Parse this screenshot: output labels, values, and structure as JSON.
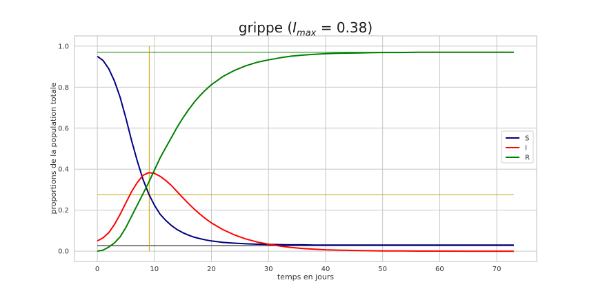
{
  "chart_data": {
    "type": "line",
    "title": {
      "prefix": "grippe (",
      "var": "I",
      "sub": "max",
      "rest": " = 0.38)"
    },
    "xlabel": "temps en jours",
    "ylabel": "proportions de la population totale",
    "xlim": [
      -4,
      77
    ],
    "ylim": [
      -0.05,
      1.05
    ],
    "xticks": [
      0,
      10,
      20,
      30,
      40,
      50,
      60,
      70
    ],
    "yticks": [
      0.0,
      0.2,
      0.4,
      0.6,
      0.8,
      1.0
    ],
    "ytick_labels": [
      "0.0",
      "0.2",
      "0.4",
      "0.6",
      "0.8",
      "1.0"
    ],
    "grid": true,
    "legend_placement": "center-right",
    "x": [
      0,
      1,
      2,
      3,
      4,
      5,
      6,
      7,
      8,
      9,
      10,
      11,
      12,
      13,
      14,
      15,
      16,
      17,
      18,
      19,
      20,
      22,
      24,
      26,
      28,
      30,
      32,
      34,
      36,
      38,
      40,
      42,
      44,
      46,
      48,
      50,
      53,
      56,
      60,
      64,
      68,
      73
    ],
    "series": [
      {
        "name": "S",
        "color": "#000080",
        "values": [
          0.95,
          0.93,
          0.89,
          0.83,
          0.75,
          0.65,
          0.54,
          0.44,
          0.35,
          0.28,
          0.225,
          0.18,
          0.15,
          0.125,
          0.105,
          0.09,
          0.078,
          0.068,
          0.061,
          0.055,
          0.05,
          0.043,
          0.039,
          0.036,
          0.034,
          0.033,
          0.032,
          0.031,
          0.031,
          0.03,
          0.03,
          0.03,
          0.03,
          0.03,
          0.03,
          0.03,
          0.03,
          0.03,
          0.03,
          0.03,
          0.03,
          0.03
        ]
      },
      {
        "name": "I",
        "color": "#ff0000",
        "values": [
          0.05,
          0.065,
          0.09,
          0.13,
          0.18,
          0.235,
          0.29,
          0.335,
          0.37,
          0.383,
          0.38,
          0.365,
          0.345,
          0.32,
          0.29,
          0.26,
          0.232,
          0.205,
          0.18,
          0.158,
          0.138,
          0.105,
          0.08,
          0.06,
          0.045,
          0.034,
          0.025,
          0.018,
          0.013,
          0.01,
          0.007,
          0.005,
          0.004,
          0.003,
          0.002,
          0.0015,
          0.001,
          0.0005,
          0.0003,
          0.0002,
          0.0001,
          0.0
        ]
      },
      {
        "name": "R",
        "color": "#008000",
        "values": [
          0.0,
          0.005,
          0.02,
          0.04,
          0.07,
          0.115,
          0.17,
          0.225,
          0.28,
          0.335,
          0.395,
          0.455,
          0.505,
          0.555,
          0.605,
          0.65,
          0.69,
          0.727,
          0.759,
          0.787,
          0.812,
          0.852,
          0.881,
          0.904,
          0.921,
          0.933,
          0.943,
          0.951,
          0.956,
          0.96,
          0.963,
          0.965,
          0.966,
          0.967,
          0.968,
          0.969,
          0.969,
          0.97,
          0.97,
          0.97,
          0.97,
          0.97
        ]
      }
    ],
    "reference_lines": [
      {
        "orientation": "horizontal",
        "value": 0.97,
        "color": "#008000"
      },
      {
        "orientation": "horizontal",
        "value": 0.275,
        "color": "#c8a000"
      },
      {
        "orientation": "horizontal",
        "value": 0.027,
        "color": "#000000"
      },
      {
        "orientation": "vertical",
        "value": 9.1,
        "color": "#c8a000"
      }
    ]
  }
}
